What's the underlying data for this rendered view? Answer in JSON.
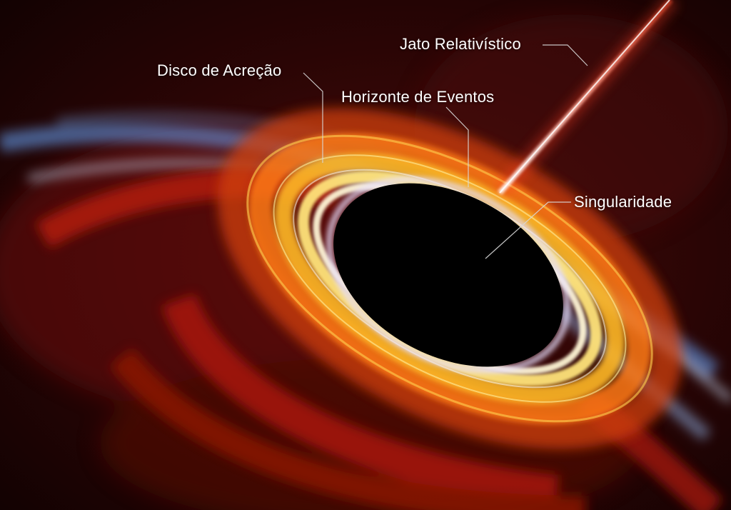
{
  "labels": {
    "relativistic_jet": "Jato Relativístico",
    "accretion_disk": "Disco de Acreção",
    "event_horizon": "Horizonte de Eventos",
    "singularity": "Singularidade"
  },
  "colors": {
    "background": "#1a0404",
    "disk_hot": "#fff3c4",
    "disk_mid": "#ffb020",
    "disk_outer": "#c82a08",
    "disk_blue": "#5fa8ff",
    "jet": "#ff8a7a",
    "horizon": "#000000",
    "leader_lines": "#d8d8d8"
  }
}
